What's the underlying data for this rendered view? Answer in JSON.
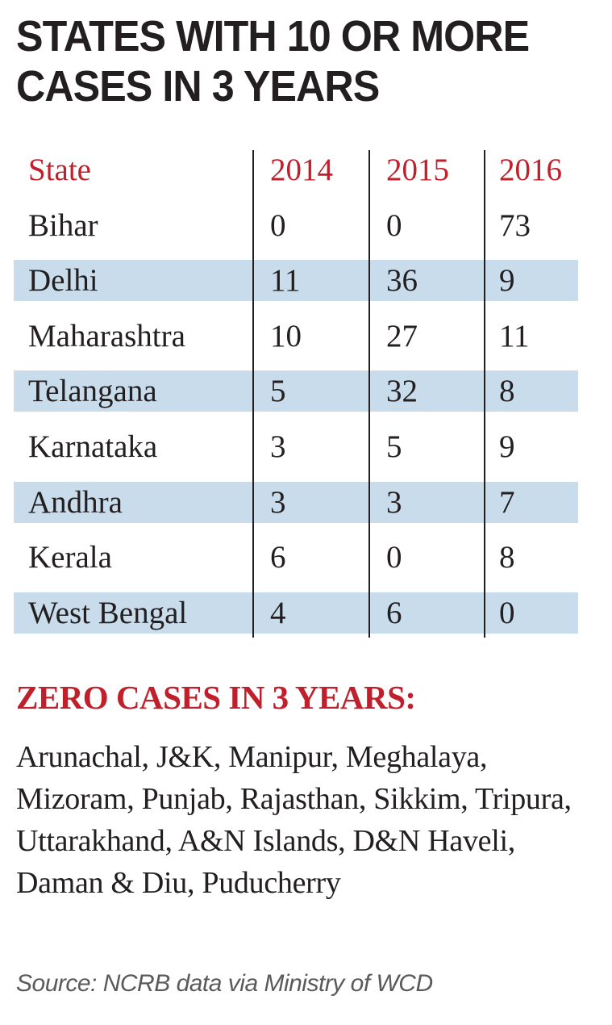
{
  "title": "STATES WITH 10 OR MORE CASES IN 3 YEARS",
  "chart_data": {
    "type": "table",
    "columns": [
      "State",
      "2014",
      "2015",
      "2016"
    ],
    "rows": [
      [
        "Bihar",
        "0",
        "0",
        "73"
      ],
      [
        "Delhi",
        "11",
        "36",
        "9"
      ],
      [
        "Maharashtra",
        "10",
        "27",
        "11"
      ],
      [
        "Telangana",
        "5",
        "32",
        "8"
      ],
      [
        "Karnataka",
        "3",
        "5",
        "9"
      ],
      [
        "Andhra",
        "3",
        "3",
        "7"
      ],
      [
        "Kerala",
        "6",
        "0",
        "8"
      ],
      [
        "West Bengal",
        "4",
        "6",
        "0"
      ]
    ]
  },
  "zero_cases": {
    "heading": "ZERO CASES IN 3 YEARS:",
    "list": "Arunachal, J&K, Manipur, Meghalaya, Mizoram, Punjab, Rajasthan, Sikkim, Tripura, Uttarakhand, A&N Islands, D&N Haveli, Daman & Diu, Puducherry"
  },
  "source": "Source: NCRB data via Ministry of WCD",
  "colors": {
    "accent_red": "#c0202b",
    "row_shade": "#c9dceb",
    "text": "#231f20"
  }
}
